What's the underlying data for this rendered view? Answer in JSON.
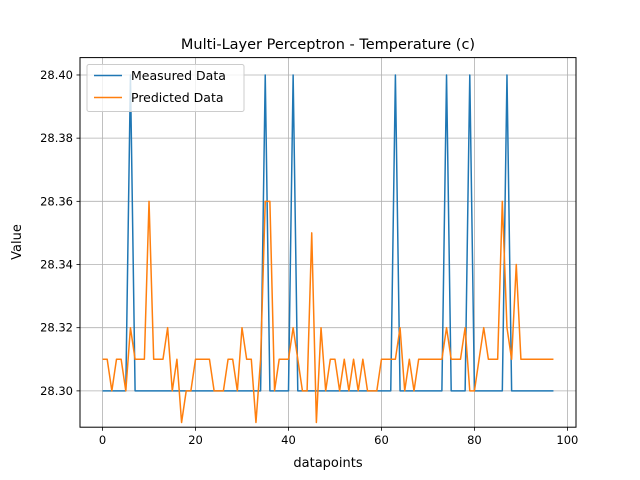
{
  "chart_data": {
    "type": "line",
    "title": "Multi-Layer Perceptron - Temperature (c)",
    "xlabel": "datapoints",
    "ylabel": "Value",
    "xlim": [
      -4.85,
      101.85
    ],
    "ylim": [
      28.2885,
      28.4055
    ],
    "xticks": [
      0,
      20,
      40,
      60,
      80,
      100
    ],
    "yticks": [
      28.3,
      28.32,
      28.34,
      28.36,
      28.38,
      28.4
    ],
    "xtick_labels": [
      "0",
      "20",
      "40",
      "60",
      "80",
      "100"
    ],
    "ytick_labels": [
      "28.30",
      "28.32",
      "28.34",
      "28.36",
      "28.38",
      "28.40"
    ],
    "grid": true,
    "legend_position": "top-left",
    "series": [
      {
        "name": "Measured Data",
        "color": "#1f77b4",
        "values": [
          28.3,
          28.3,
          28.3,
          28.3,
          28.3,
          28.3,
          28.4,
          28.3,
          28.3,
          28.3,
          28.3,
          28.3,
          28.3,
          28.3,
          28.3,
          28.3,
          28.3,
          28.3,
          28.3,
          28.3,
          28.3,
          28.3,
          28.3,
          28.3,
          28.3,
          28.3,
          28.3,
          28.3,
          28.3,
          28.3,
          28.3,
          28.3,
          28.3,
          28.3,
          28.3,
          28.4,
          28.3,
          28.3,
          28.3,
          28.3,
          28.3,
          28.4,
          28.3,
          28.3,
          28.3,
          28.3,
          28.3,
          28.3,
          28.3,
          28.3,
          28.3,
          28.3,
          28.3,
          28.3,
          28.3,
          28.3,
          28.3,
          28.3,
          28.3,
          28.3,
          28.3,
          28.3,
          28.3,
          28.4,
          28.3,
          28.3,
          28.3,
          28.3,
          28.3,
          28.3,
          28.3,
          28.3,
          28.3,
          28.3,
          28.4,
          28.3,
          28.3,
          28.3,
          28.3,
          28.4,
          28.3,
          28.3,
          28.3,
          28.3,
          28.3,
          28.3,
          28.3,
          28.4,
          28.3,
          28.3,
          28.3,
          28.3,
          28.3,
          28.3,
          28.3,
          28.3,
          28.3,
          28.3
        ]
      },
      {
        "name": "Predicted Data",
        "color": "#ff7f0e",
        "values": [
          28.31,
          28.31,
          28.3,
          28.31,
          28.31,
          28.3,
          28.32,
          28.31,
          28.31,
          28.31,
          28.36,
          28.31,
          28.31,
          28.31,
          28.32,
          28.3,
          28.31,
          28.29,
          28.3,
          28.3,
          28.31,
          28.31,
          28.31,
          28.31,
          28.3,
          28.3,
          28.3,
          28.31,
          28.31,
          28.3,
          28.32,
          28.31,
          28.31,
          28.29,
          28.31,
          28.36,
          28.36,
          28.3,
          28.31,
          28.31,
          28.31,
          28.32,
          28.31,
          28.3,
          28.3,
          28.35,
          28.29,
          28.32,
          28.3,
          28.31,
          28.31,
          28.3,
          28.31,
          28.3,
          28.31,
          28.3,
          28.31,
          28.3,
          28.3,
          28.3,
          28.31,
          28.31,
          28.31,
          28.31,
          28.32,
          28.3,
          28.31,
          28.3,
          28.31,
          28.31,
          28.31,
          28.31,
          28.31,
          28.31,
          28.32,
          28.31,
          28.31,
          28.31,
          28.32,
          28.3,
          28.3,
          28.31,
          28.32,
          28.31,
          28.31,
          28.31,
          28.36,
          28.32,
          28.31,
          28.34,
          28.31,
          28.31,
          28.31,
          28.31,
          28.31,
          28.31,
          28.31,
          28.31
        ]
      }
    ]
  }
}
